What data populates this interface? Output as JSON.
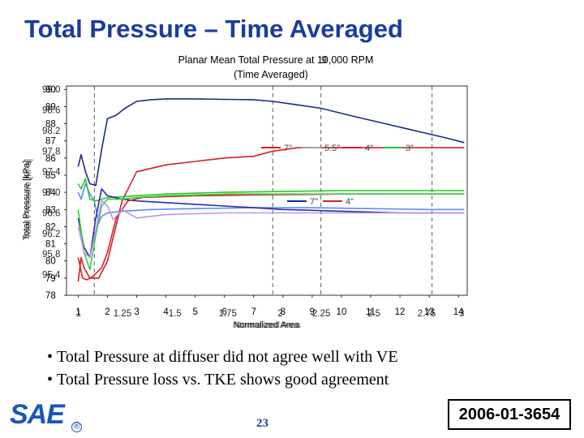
{
  "slide": {
    "title": "Total Pressure – Time Averaged",
    "bullets": [
      "Total Pressure at diffuser did not agree well with VE",
      "Total Pressure loss vs. TKE shows good agreement"
    ],
    "logo_text": "SAE",
    "registered_mark": "®",
    "page_number": "23",
    "paper_id": "2006-01-3654"
  },
  "chart_data": {
    "type": "line",
    "title_line1": "Planar Mean Total Pressure at 10,000 RPM",
    "title_line2": "(Time Averaged)",
    "title_overlay": "9",
    "xlabel": "Normalized Area",
    "ylabel": "Total Pressure [kPa]",
    "xlim": [
      0.6,
      14.3
    ],
    "ylim": [
      78.0,
      90.2
    ],
    "x_ticks": [
      {
        "value": 1,
        "label": "1"
      },
      {
        "value": 2,
        "label": "2"
      },
      {
        "value": 3,
        "label": "3"
      },
      {
        "value": 4,
        "label": "4"
      },
      {
        "value": 5,
        "label": "5"
      },
      {
        "value": 6,
        "label": "6"
      },
      {
        "value": 7,
        "label": "7"
      },
      {
        "value": 8,
        "label": "8"
      },
      {
        "value": 9,
        "label": "9"
      },
      {
        "value": 10,
        "label": "10"
      },
      {
        "value": 11,
        "label": "11"
      },
      {
        "value": 12,
        "label": "12"
      },
      {
        "value": 13,
        "label": "13"
      },
      {
        "value": 14,
        "label": "14"
      }
    ],
    "x_ticks_overlay": [
      {
        "value": 0.9,
        "label": "1"
      },
      {
        "value": 2.4,
        "label": "1.25"
      },
      {
        "value": 4.2,
        "label": "1.5"
      },
      {
        "value": 6.0,
        "label": "1.75"
      },
      {
        "value": 7.8,
        "label": "2"
      },
      {
        "value": 9.2,
        "label": "2.25"
      },
      {
        "value": 11.0,
        "label": "2.5"
      },
      {
        "value": 12.8,
        "label": "2.75"
      },
      {
        "value": 14.0,
        "label": "3"
      }
    ],
    "y_ticks": [
      {
        "value": 90,
        "label": "90"
      },
      {
        "value": 89,
        "label": "89"
      },
      {
        "value": 88,
        "label": "88"
      },
      {
        "value": 87,
        "label": "87"
      },
      {
        "value": 86,
        "label": "86"
      },
      {
        "value": 85,
        "label": "85"
      },
      {
        "value": 84,
        "label": "84"
      },
      {
        "value": 83,
        "label": "83"
      },
      {
        "value": 82,
        "label": "82"
      },
      {
        "value": 81,
        "label": "81"
      },
      {
        "value": 80,
        "label": "80"
      },
      {
        "value": 79,
        "label": "79"
      },
      {
        "value": 78,
        "label": "78"
      }
    ],
    "y_ticks_overlay": [
      {
        "value": 90,
        "label": "99.0"
      },
      {
        "value": 88.8,
        "label": "98.6"
      },
      {
        "value": 87.6,
        "label": "98.2"
      },
      {
        "value": 86.4,
        "label": "97.8"
      },
      {
        "value": 85.2,
        "label": "97.4"
      },
      {
        "value": 84.0,
        "label": "97.0"
      },
      {
        "value": 82.8,
        "label": "96.6"
      },
      {
        "value": 81.6,
        "label": "96.2"
      },
      {
        "value": 80.4,
        "label": "95.8"
      },
      {
        "value": 79.2,
        "label": "95.4"
      }
    ],
    "vertical_refs": [
      1.55,
      7.65,
      9.3,
      13.1
    ],
    "series": [
      {
        "name": "7\"",
        "color": "#1a2a8c",
        "group": "A",
        "x": [
          1.0,
          1.1,
          1.25,
          1.4,
          1.6,
          1.8,
          2.0,
          2.3,
          2.6,
          3.0,
          3.5,
          4.0,
          5.0,
          6.0,
          7.0,
          7.65,
          8.5,
          9.3,
          10.5,
          11.5,
          12.5,
          13.5,
          14.2
        ],
        "y": [
          85.5,
          86.2,
          85.2,
          84.5,
          84.4,
          86.5,
          88.3,
          88.5,
          88.9,
          89.3,
          89.4,
          89.45,
          89.45,
          89.42,
          89.4,
          89.3,
          89.1,
          88.9,
          88.4,
          88.0,
          87.6,
          87.2,
          86.9
        ]
      },
      {
        "name": "5.5\"",
        "color": "#5b8cff",
        "group": "A",
        "x": [
          1.0,
          1.1,
          1.25,
          1.4,
          1.55,
          1.7,
          1.8,
          2.0,
          2.5,
          3.5,
          5.0,
          7.0,
          9.0,
          11.0,
          13.0,
          14.2
        ],
        "y": [
          84.0,
          83.6,
          84.5,
          83.9,
          83.5,
          82.2,
          82.6,
          82.8,
          82.9,
          83.0,
          83.05,
          83.1,
          83.1,
          83.05,
          83.0,
          83.0
        ]
      },
      {
        "name": "4\"",
        "color": "#d42020",
        "group": "A",
        "x": [
          1.0,
          1.1,
          1.2,
          1.4,
          1.7,
          2.0,
          2.5,
          3.0,
          4.0,
          5.0,
          6.0,
          7.0,
          7.65,
          8.5,
          9.3,
          11.0,
          13.0,
          14.2
        ],
        "y": [
          78.8,
          80.2,
          79.6,
          79.0,
          79.0,
          80.0,
          83.5,
          85.2,
          85.6,
          85.8,
          86.0,
          86.1,
          86.4,
          86.6,
          86.6,
          86.6,
          86.6,
          86.6
        ]
      },
      {
        "name": "3\"",
        "color": "#28c828",
        "group": "A",
        "x": [
          1.0,
          1.1,
          1.25,
          1.4,
          1.6,
          1.8,
          2.0,
          2.5,
          3.0,
          4.0,
          6.0,
          8.0,
          10.0,
          12.0,
          14.2
        ],
        "y": [
          84.5,
          84.2,
          84.8,
          83.6,
          83.5,
          83.6,
          83.7,
          83.75,
          83.8,
          83.9,
          84.0,
          84.05,
          84.1,
          84.1,
          84.1
        ]
      },
      {
        "name": "7\"",
        "color": "#2a2ab0",
        "group": "B",
        "x": [
          1.0,
          1.2,
          1.4,
          1.6,
          1.8,
          2.0,
          2.5,
          3.0,
          4.0,
          5.0,
          6.0,
          7.0,
          8.0,
          9.0,
          10.0,
          11.0,
          12.0,
          13.0,
          14.2
        ],
        "y": [
          82.5,
          80.8,
          80.2,
          82.5,
          84.2,
          83.8,
          83.6,
          83.5,
          83.4,
          83.3,
          83.2,
          83.1,
          83.0,
          82.95,
          82.9,
          82.85,
          82.8,
          82.8,
          82.8
        ]
      },
      {
        "name": "4\"",
        "color": "#e02020",
        "group": "B",
        "x": [
          1.0,
          1.15,
          1.3,
          1.5,
          1.8,
          2.0,
          2.3,
          2.7,
          3.2,
          4.0,
          5.0,
          6.0,
          7.0,
          8.0,
          9.0,
          10.0,
          11.0,
          12.0,
          13.0,
          14.2
        ],
        "y": [
          80.2,
          79.0,
          78.9,
          79.1,
          79.6,
          80.5,
          82.5,
          83.5,
          83.7,
          83.75,
          83.8,
          83.82,
          83.85,
          83.87,
          83.88,
          83.9,
          83.9,
          83.9,
          83.9,
          83.9
        ]
      },
      {
        "name": "green-b",
        "color": "#30d040",
        "group": "C",
        "x": [
          1.0,
          1.2,
          1.4,
          1.6,
          1.8,
          2.0,
          2.5,
          3.0,
          4.0,
          5.0,
          6.0,
          7.0,
          8.0,
          9.0,
          10.0,
          11.0,
          12.0,
          13.0,
          14.2
        ],
        "y": [
          83.0,
          80.5,
          79.5,
          81.5,
          83.2,
          83.6,
          83.6,
          83.7,
          83.8,
          83.85,
          83.9,
          83.9,
          83.9,
          83.9,
          83.9,
          83.9,
          83.9,
          83.9,
          83.9
        ]
      },
      {
        "name": "violet-b",
        "color": "#b898e8",
        "group": "C",
        "x": [
          1.0,
          1.2,
          1.4,
          1.6,
          1.8,
          2.0,
          2.2,
          2.5,
          3.0,
          4.0,
          5.0,
          6.0,
          7.0,
          8.0,
          10.0,
          12.0,
          14.2
        ],
        "y": [
          82.0,
          80.5,
          80.2,
          81.8,
          83.5,
          83.2,
          82.4,
          83.0,
          82.5,
          82.7,
          82.75,
          82.8,
          82.8,
          82.8,
          82.8,
          82.8,
          82.8
        ]
      }
    ],
    "legend_a": [
      {
        "label": "7\"",
        "color": "#d42020"
      },
      {
        "label": "5.5\"",
        "color": "#a0a0a0"
      },
      {
        "label": "4\"",
        "color": "#d42020"
      },
      {
        "label": "3\"",
        "color": "#28c828"
      }
    ],
    "legend_b": [
      {
        "label": "7\"",
        "color": "#1a2a8c"
      },
      {
        "label": "4\"",
        "color": "#d42020"
      }
    ]
  }
}
